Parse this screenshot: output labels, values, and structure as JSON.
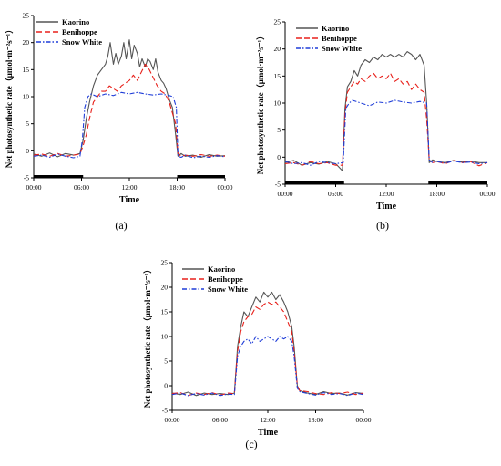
{
  "chart_data": [
    {
      "id": "a",
      "type": "line",
      "panel_label": "(a)",
      "xlabel": "Time",
      "ylabel": "Net photosynthetic rate（μmol·m⁻²s⁻¹）",
      "x_ticks": [
        "00:00",
        "06:00",
        "12:00",
        "18:00",
        "00:00"
      ],
      "xlim": [
        0,
        24
      ],
      "ylim": [
        -5,
        25
      ],
      "y_ticks": [
        -5,
        0,
        5,
        10,
        15,
        20,
        25
      ],
      "legend_position": "top-left",
      "dark_period_bars": [
        [
          0,
          6.2
        ],
        [
          18.0,
          24
        ]
      ],
      "series": [
        {
          "name": "Kaorino",
          "color": "#555555",
          "dash": "solid",
          "x": [
            0,
            1,
            2,
            3,
            4,
            5,
            5.8,
            6.2,
            6.6,
            7,
            7.5,
            8,
            8.5,
            9,
            9.3,
            9.6,
            10,
            10.3,
            10.6,
            11,
            11.3,
            11.6,
            12,
            12.3,
            12.6,
            13,
            13.3,
            13.6,
            14,
            14.3,
            14.6,
            15,
            15.3,
            15.6,
            16,
            16.3,
            16.6,
            17,
            17.4,
            17.8,
            18.1,
            18.5,
            19,
            20,
            21,
            22,
            23,
            24
          ],
          "values": [
            -0.6,
            -1,
            -0.4,
            -1.1,
            -0.5,
            -0.8,
            -0.5,
            2,
            6,
            9,
            12,
            14,
            15,
            16,
            17.5,
            20,
            16,
            18,
            16,
            17.5,
            20,
            17,
            20.5,
            17,
            19.5,
            18,
            15.5,
            17,
            15.5,
            17,
            16.5,
            15,
            17,
            14.5,
            13,
            12.5,
            11.5,
            9.5,
            8,
            3,
            -1,
            -0.5,
            -1,
            -0.8,
            -1.2,
            -0.7,
            -1,
            -0.9
          ]
        },
        {
          "name": "Benihoppe",
          "color": "#e8211b",
          "dash": "6,3",
          "x": [
            0,
            1,
            2,
            3,
            4,
            5,
            5.8,
            6.2,
            6.6,
            7,
            7.5,
            8,
            8.5,
            9,
            9.5,
            10,
            10.5,
            11,
            11.5,
            12,
            12.5,
            13,
            13.5,
            14,
            14.5,
            15,
            15.5,
            16,
            16.5,
            17,
            17.4,
            17.8,
            18.1,
            18.5,
            19,
            20,
            21,
            22,
            23,
            24
          ],
          "values": [
            -0.8,
            -0.6,
            -1,
            -0.5,
            -1,
            -0.8,
            -0.6,
            1,
            3,
            6,
            9,
            10,
            11,
            11,
            12,
            11.5,
            11,
            12,
            12.5,
            13,
            14,
            13,
            14.5,
            16,
            15,
            13.5,
            12,
            11,
            10.5,
            9,
            7,
            5,
            -0.5,
            -1,
            -0.8,
            -1,
            -0.7,
            -1,
            -0.8,
            -1
          ]
        },
        {
          "name": "Snow White",
          "color": "#1f3dd8",
          "dash": "5,2,1.5,2",
          "x": [
            0,
            1,
            2,
            3,
            4,
            5,
            5.8,
            6.1,
            6.4,
            6.8,
            7.2,
            8,
            9,
            10,
            11,
            12,
            13,
            14,
            15,
            16,
            17,
            17.5,
            17.9,
            18.1,
            18.5,
            19,
            20,
            21,
            22,
            23,
            24
          ],
          "values": [
            -1,
            -0.8,
            -1.2,
            -0.6,
            -1,
            -1.3,
            -1,
            2,
            8,
            10,
            10.5,
            10,
            10.5,
            10.2,
            10.8,
            10.5,
            10.8,
            10.5,
            10.3,
            10.5,
            10.2,
            10,
            8,
            -1,
            -1.2,
            -0.8,
            -1.3,
            -1,
            -1.2,
            -0.9,
            -1.1
          ]
        }
      ]
    },
    {
      "id": "b",
      "type": "line",
      "panel_label": "(b)",
      "xlabel": "Time",
      "ylabel": "Net photosynthetic rate（μmol·m⁻²s⁻¹）",
      "x_ticks": [
        "00:00",
        "06:00",
        "12:00",
        "18:00",
        "00:00"
      ],
      "xlim": [
        0,
        24
      ],
      "ylim": [
        -5,
        25
      ],
      "y_ticks": [
        -5,
        0,
        5,
        10,
        15,
        20,
        25
      ],
      "legend_position": "top-right",
      "dark_period_bars": [
        [
          0,
          7.0
        ],
        [
          17.0,
          24
        ]
      ],
      "series": [
        {
          "name": "Kaorino",
          "color": "#555555",
          "dash": "solid",
          "x": [
            0,
            1,
            2,
            3,
            4,
            5,
            6,
            6.8,
            7.1,
            7.4,
            7.8,
            8.2,
            8.6,
            9,
            9.5,
            10,
            10.5,
            11,
            11.5,
            12,
            12.5,
            13,
            13.5,
            14,
            14.5,
            15,
            15.5,
            16,
            16.5,
            16.8,
            17.1,
            17.5,
            18,
            19,
            20,
            21,
            22,
            23,
            24
          ],
          "values": [
            -1,
            -0.6,
            -1.5,
            -1,
            -1.3,
            -0.8,
            -1.2,
            -2.5,
            9,
            13,
            14,
            16,
            15,
            17,
            18,
            17.5,
            18.5,
            18,
            19,
            18.5,
            19,
            18.5,
            19,
            18.5,
            19.5,
            19,
            18,
            19,
            17,
            10,
            -1,
            -0.5,
            -0.8,
            -1,
            -0.6,
            -0.9,
            -0.7,
            -1,
            -1
          ]
        },
        {
          "name": "Benihoppe",
          "color": "#e8211b",
          "dash": "6,3",
          "x": [
            0,
            1,
            2,
            3,
            4,
            5,
            6,
            6.8,
            7.1,
            7.4,
            7.8,
            8.2,
            8.6,
            9,
            9.5,
            10,
            10.5,
            11,
            11.5,
            12,
            12.5,
            13,
            13.5,
            14,
            14.5,
            15,
            15.5,
            16,
            16.5,
            16.8,
            17.1,
            17.5,
            18,
            19,
            20,
            21,
            22,
            23,
            24
          ],
          "values": [
            -1.2,
            -1,
            -1.5,
            -0.8,
            -1.2,
            -1,
            -1.5,
            -1.5,
            8,
            12,
            13,
            14,
            13.5,
            14.5,
            14,
            15,
            15.5,
            14.5,
            15,
            14.5,
            15.5,
            14,
            14.5,
            13.5,
            14,
            12.5,
            13.5,
            12.5,
            12,
            7,
            -0.5,
            -1,
            -0.8,
            -1.2,
            -0.6,
            -1,
            -0.8,
            -1.6,
            -1
          ]
        },
        {
          "name": "Snow White",
          "color": "#1f3dd8",
          "dash": "5,2,1.5,2",
          "x": [
            0,
            1,
            2,
            3,
            4,
            5,
            6,
            6.9,
            7.2,
            7.6,
            8,
            9,
            10,
            11,
            12,
            13,
            14,
            15,
            16,
            16.8,
            17.1,
            17.5,
            18,
            19,
            20,
            21,
            22,
            23,
            24
          ],
          "values": [
            -0.8,
            -1.2,
            -1,
            -1.5,
            -0.8,
            -1,
            -1.2,
            -1,
            9,
            10,
            10.5,
            10,
            9.5,
            10.2,
            10,
            10.5,
            10.2,
            10,
            10.3,
            10,
            -0.5,
            -1,
            -0.8,
            -1.1,
            -0.7,
            -1,
            -0.9,
            -1.2,
            -1
          ]
        }
      ]
    },
    {
      "id": "c",
      "type": "line",
      "panel_label": "(c)",
      "xlabel": "Time",
      "ylabel": "Net photosynthetic rate（μmol·m⁻²s⁻¹）",
      "x_ticks": [
        "00:00",
        "06:00",
        "12:00",
        "18:00",
        "00:00"
      ],
      "xlim": [
        0,
        24
      ],
      "ylim": [
        -5,
        25
      ],
      "y_ticks": [
        -5,
        0,
        5,
        10,
        15,
        20,
        25
      ],
      "legend_position": "top-right",
      "dark_period_bars": [],
      "series": [
        {
          "name": "Kaorino",
          "color": "#555555",
          "dash": "solid",
          "x": [
            0,
            1,
            2,
            3,
            4,
            5,
            6,
            7,
            7.8,
            8.2,
            8.6,
            9,
            9.5,
            10,
            10.5,
            11,
            11.5,
            12,
            12.5,
            13,
            13.5,
            14,
            14.5,
            15,
            15.3,
            15.7,
            16,
            17,
            18,
            19,
            20,
            21,
            22,
            23,
            24
          ],
          "values": [
            -1.5,
            -1.8,
            -1.3,
            -2,
            -1.5,
            -1.8,
            -1.6,
            -1.8,
            -1.5,
            8,
            12,
            15,
            14,
            16,
            18,
            17,
            19,
            18,
            19,
            17.5,
            18.5,
            17,
            15,
            12,
            8,
            0,
            -1,
            -1.5,
            -1.8,
            -1.2,
            -1.6,
            -1.5,
            -1.9,
            -1.4,
            -1.6
          ]
        },
        {
          "name": "Benihoppe",
          "color": "#e8211b",
          "dash": "6,3",
          "x": [
            0,
            1,
            2,
            3,
            4,
            5,
            6,
            7,
            7.8,
            8.2,
            8.6,
            9,
            9.5,
            10,
            10.5,
            11,
            11.5,
            12,
            12.5,
            13,
            13.5,
            14,
            14.5,
            15,
            15.3,
            15.7,
            16,
            17,
            18,
            19,
            20,
            21,
            22,
            23,
            24
          ],
          "values": [
            -1.6,
            -1.4,
            -2,
            -1.5,
            -1.8,
            -1.4,
            -1.9,
            -1.5,
            -1.6,
            7,
            11,
            13,
            14,
            14.5,
            16,
            15.5,
            16.5,
            17,
            16.5,
            17,
            16,
            15,
            13,
            11,
            7,
            0,
            -1,
            -1.2,
            -1.6,
            -1.8,
            -1.4,
            -1.6,
            -1.3,
            -1.8,
            -1.5
          ]
        },
        {
          "name": "Snow White",
          "color": "#1f3dd8",
          "dash": "5,2,1.5,2",
          "x": [
            0,
            1,
            2,
            3,
            4,
            5,
            6,
            7,
            7.8,
            8.2,
            8.6,
            9,
            9.5,
            10,
            10.5,
            11,
            11.5,
            12,
            12.5,
            13,
            13.5,
            14,
            14.5,
            15,
            15.3,
            15.7,
            16,
            17,
            18,
            19,
            20,
            21,
            22,
            23,
            24
          ],
          "values": [
            -1.8,
            -1.5,
            -2,
            -1.6,
            -1.9,
            -1.5,
            -2,
            -1.7,
            -1.8,
            6,
            8,
            9,
            9.5,
            8.5,
            10,
            9,
            9.5,
            10,
            9.5,
            9,
            10,
            9.5,
            10,
            9,
            6,
            -0.5,
            -1.2,
            -1.6,
            -1.9,
            -1.4,
            -1.8,
            -1.6,
            -2,
            -1.5,
            -1.8
          ]
        }
      ]
    }
  ]
}
